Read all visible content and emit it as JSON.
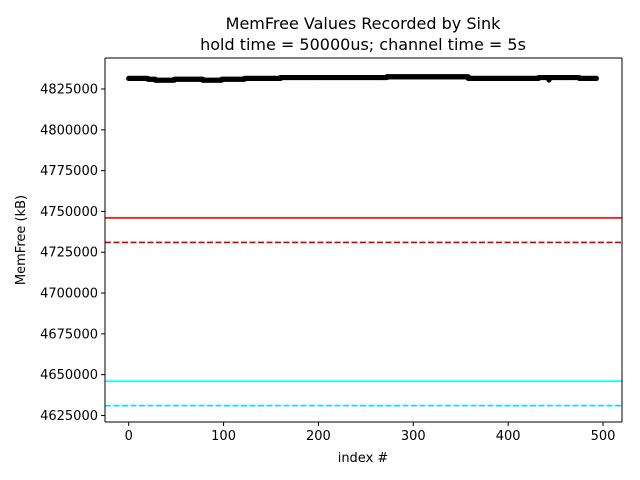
{
  "chart_data": {
    "type": "scatter",
    "title": "MemFree Values Recorded by Sink",
    "subtitle": "hold time = 50000us; channel time = 5s",
    "xlabel": "index #",
    "ylabel": "MemFree (kB)",
    "xlim": [
      -25,
      520
    ],
    "ylim": [
      4621000,
      4844000
    ],
    "xticks": [
      0,
      100,
      200,
      300,
      400,
      500
    ],
    "yticks": [
      4625000,
      4650000,
      4675000,
      4700000,
      4725000,
      4750000,
      4775000,
      4800000,
      4825000
    ],
    "grid": false,
    "legend": "none",
    "series": [
      {
        "color": "#000000",
        "marker": "circle",
        "x_range": [
          0,
          493
        ],
        "segments": [
          {
            "x0": 0,
            "x1": 20,
            "y": 4831500
          },
          {
            "x0": 20,
            "x1": 28,
            "y": 4831000
          },
          {
            "x0": 28,
            "x1": 48,
            "y": 4830400
          },
          {
            "x0": 48,
            "x1": 78,
            "y": 4831000
          },
          {
            "x0": 78,
            "x1": 98,
            "y": 4830400
          },
          {
            "x0": 98,
            "x1": 122,
            "y": 4831000
          },
          {
            "x0": 122,
            "x1": 160,
            "y": 4831500
          },
          {
            "x0": 160,
            "x1": 272,
            "y": 4832000
          },
          {
            "x0": 272,
            "x1": 358,
            "y": 4832500
          },
          {
            "x0": 358,
            "x1": 432,
            "y": 4831500
          },
          {
            "x0": 432,
            "x1": 475,
            "y": 4832000
          },
          {
            "x0": 475,
            "x1": 493,
            "y": 4831500
          }
        ],
        "outliers": [
          {
            "x": 443,
            "y": 4830500
          }
        ]
      }
    ],
    "hlines": [
      {
        "y": 4746000,
        "color": "#ff0000",
        "style": "solid"
      },
      {
        "y": 4731000,
        "color": "#cc0000",
        "style": "dashed"
      },
      {
        "y": 4646000,
        "color": "#00ffff",
        "style": "solid"
      },
      {
        "y": 4631000,
        "color": "#00e5e5",
        "style": "dashed"
      }
    ]
  }
}
